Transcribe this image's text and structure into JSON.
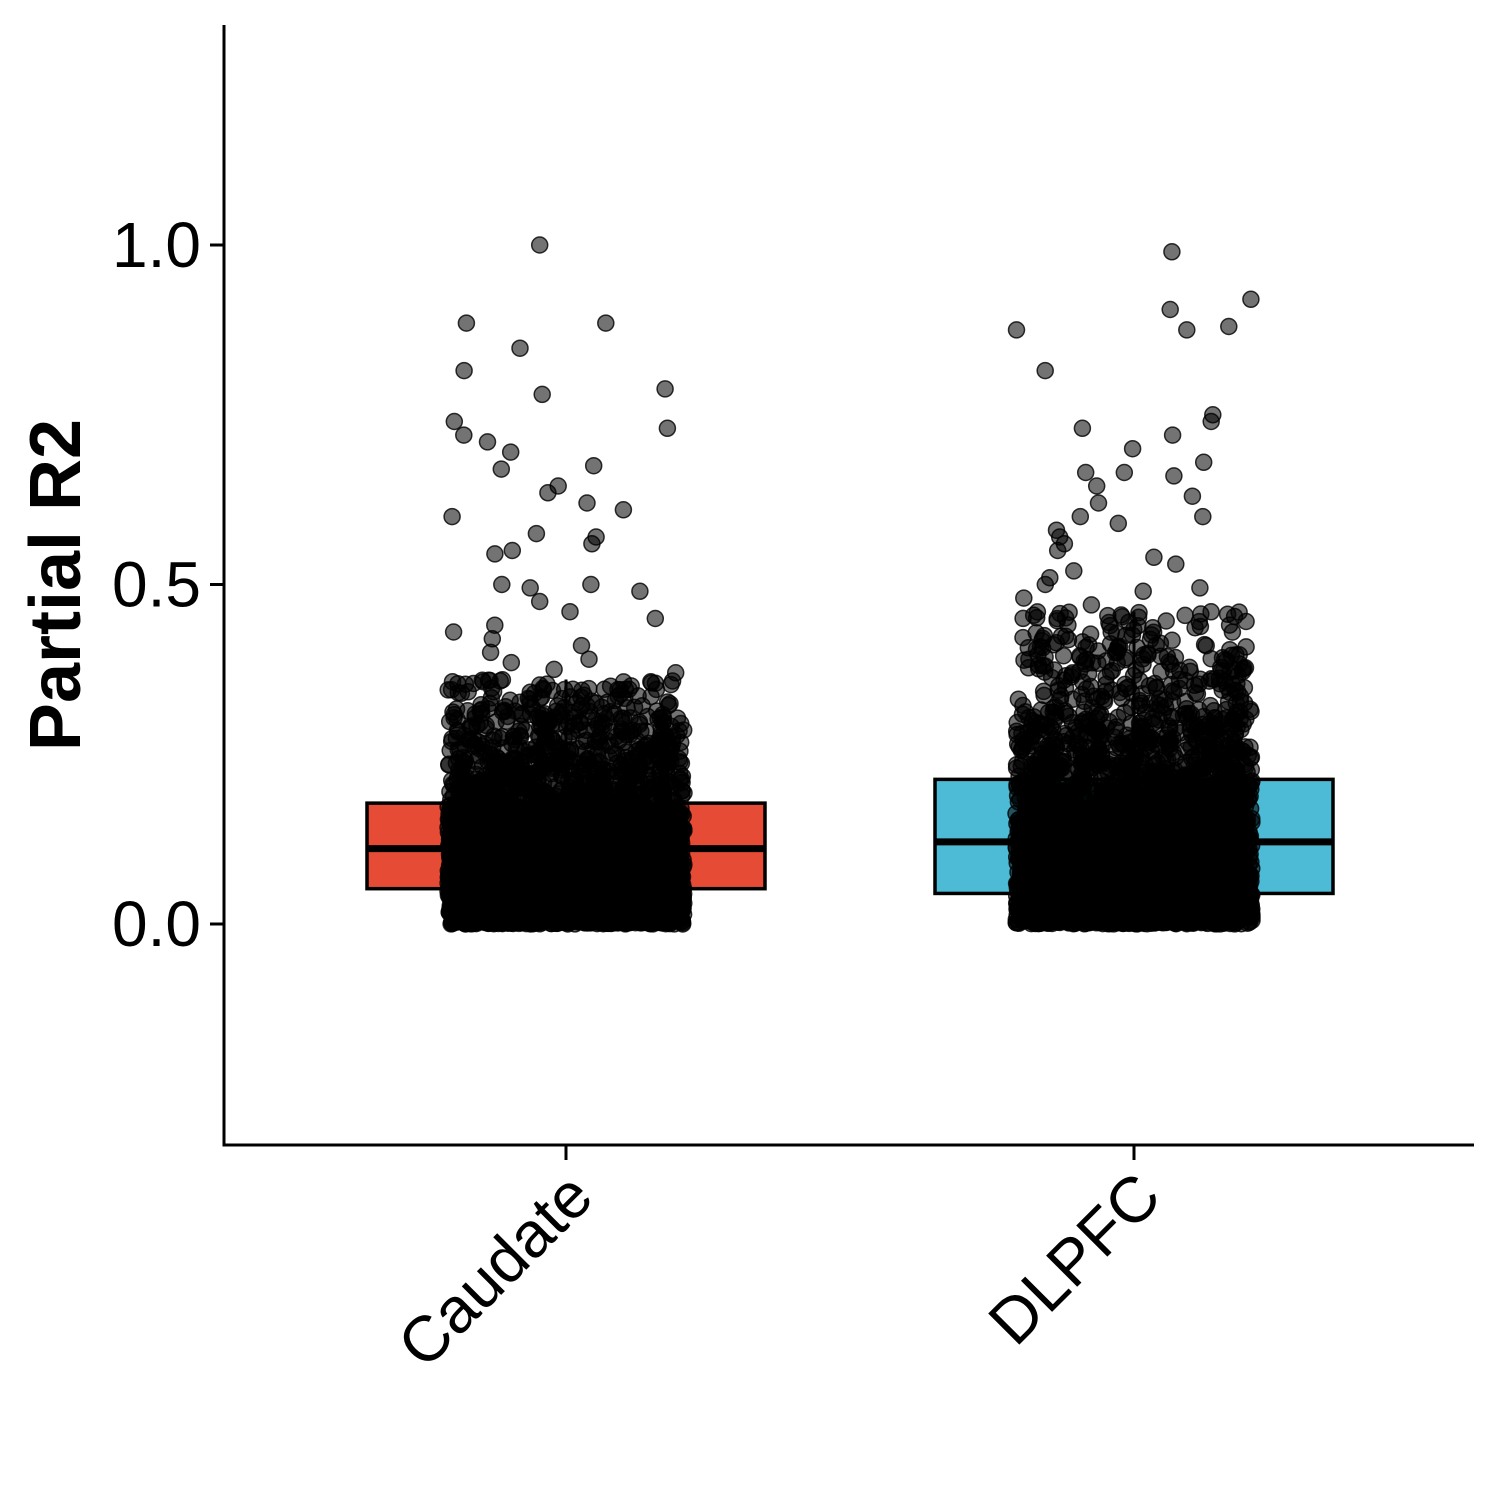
{
  "chart_data": {
    "type": "boxplot",
    "ylabel": "Partial R2",
    "xlabel": "",
    "ylim": [
      -0.32,
      1.32
    ],
    "y_ticks": [
      {
        "value": 0.0,
        "label": "0.0"
      },
      {
        "value": 0.5,
        "label": "0.5"
      },
      {
        "value": 1.0,
        "label": "1.0"
      }
    ],
    "grid": false,
    "legend": "none",
    "categories": [
      "Caudate",
      "DLPFC"
    ],
    "series": [
      {
        "category": "Caudate",
        "color": "#E64B35",
        "box": {
          "q1": 0.052,
          "median": 0.111,
          "q3": 0.178,
          "whisker_low": 0.0,
          "whisker_high": 0.36
        },
        "approx_point_count": 4000,
        "outliers": [
          1.0,
          0.885,
          0.885,
          0.848,
          0.815,
          0.788,
          0.78,
          0.74,
          0.73,
          0.72,
          0.71,
          0.695,
          0.675,
          0.67,
          0.645,
          0.635,
          0.62,
          0.61,
          0.6,
          0.575,
          0.57,
          0.56,
          0.55,
          0.545,
          0.5,
          0.5,
          0.495,
          0.49,
          0.475,
          0.46,
          0.45,
          0.44,
          0.43,
          0.42,
          0.41,
          0.4,
          0.39,
          0.385,
          0.375,
          0.37
        ]
      },
      {
        "category": "DLPFC",
        "color": "#4DBBD5",
        "box": {
          "q1": 0.045,
          "median": 0.121,
          "q3": 0.213,
          "whisker_low": 0.0,
          "whisker_high": 0.46
        },
        "approx_point_count": 4000,
        "outliers": [
          0.99,
          0.92,
          0.905,
          0.88,
          0.875,
          0.875,
          0.815,
          0.75,
          0.74,
          0.73,
          0.72,
          0.7,
          0.68,
          0.665,
          0.665,
          0.66,
          0.645,
          0.63,
          0.62,
          0.6,
          0.6,
          0.59,
          0.58,
          0.57,
          0.56,
          0.55,
          0.54,
          0.53,
          0.52,
          0.51,
          0.5,
          0.495,
          0.49,
          0.48,
          0.47
        ]
      }
    ]
  }
}
